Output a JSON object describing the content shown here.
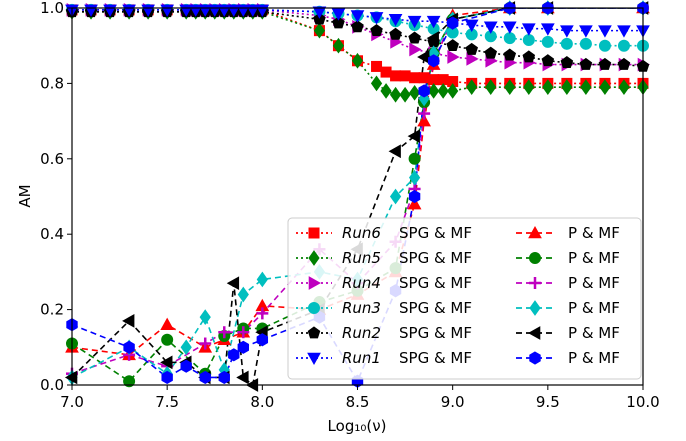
{
  "chart_data": {
    "type": "line",
    "xlabel": "Log₁₀(ν)",
    "ylabel": "AM",
    "xlim": [
      7.0,
      10.0
    ],
    "ylim": [
      0.0,
      1.0
    ],
    "x_ticks": [
      "7.0",
      "7.5",
      "8.0",
      "8.5",
      "9.0",
      "9.5",
      "10.0"
    ],
    "y_ticks": [
      "0.0",
      "0.2",
      "0.4",
      "0.6",
      "0.8",
      "1.0"
    ],
    "legend_position": "lower-right",
    "grid": false,
    "series": [
      {
        "name": "Run6",
        "method": "SPG & MF",
        "color": "#ff0000",
        "marker": "square",
        "dash": "dotted",
        "x": [
          7.0,
          7.1,
          7.2,
          7.3,
          7.4,
          7.5,
          7.6,
          7.65,
          7.7,
          7.75,
          7.8,
          7.85,
          7.9,
          7.95,
          8.0,
          8.3,
          8.4,
          8.5,
          8.6,
          8.65,
          8.7,
          8.75,
          8.8,
          8.85,
          8.9,
          8.95,
          9.0,
          9.1,
          9.2,
          9.3,
          9.4,
          9.5,
          9.6,
          9.7,
          9.8,
          9.9,
          10.0
        ],
        "y": [
          0.995,
          0.995,
          0.995,
          0.995,
          0.995,
          0.995,
          0.995,
          0.995,
          0.995,
          0.995,
          0.995,
          0.995,
          0.995,
          0.995,
          0.995,
          0.94,
          0.9,
          0.86,
          0.845,
          0.83,
          0.82,
          0.82,
          0.815,
          0.815,
          0.81,
          0.81,
          0.805,
          0.8,
          0.8,
          0.8,
          0.8,
          0.8,
          0.8,
          0.8,
          0.8,
          0.8,
          0.8
        ]
      },
      {
        "name": "Run5",
        "method": "SPG & MF",
        "color": "#008000",
        "marker": "diamond",
        "dash": "dotted",
        "x": [
          7.0,
          7.1,
          7.2,
          7.3,
          7.4,
          7.5,
          7.6,
          7.65,
          7.7,
          7.75,
          7.8,
          7.85,
          7.9,
          7.95,
          8.0,
          8.3,
          8.4,
          8.5,
          8.6,
          8.65,
          8.7,
          8.75,
          8.8,
          8.85,
          8.9,
          8.95,
          9.0,
          9.1,
          9.2,
          9.3,
          9.4,
          9.5,
          9.6,
          9.7,
          9.8,
          9.9,
          10.0
        ],
        "y": [
          0.99,
          0.99,
          0.99,
          0.99,
          0.99,
          0.99,
          0.99,
          0.99,
          0.99,
          0.99,
          0.99,
          0.99,
          0.99,
          0.99,
          0.99,
          0.94,
          0.9,
          0.86,
          0.8,
          0.78,
          0.77,
          0.77,
          0.775,
          0.775,
          0.78,
          0.78,
          0.78,
          0.79,
          0.79,
          0.79,
          0.79,
          0.79,
          0.79,
          0.79,
          0.79,
          0.79,
          0.79
        ]
      },
      {
        "name": "Run4",
        "method": "SPG & MF",
        "color": "#bf00bf",
        "marker": "triangle-right",
        "dash": "dotted",
        "x": [
          7.0,
          7.1,
          7.2,
          7.3,
          7.4,
          7.5,
          7.6,
          7.65,
          7.7,
          7.75,
          7.8,
          7.85,
          7.9,
          7.95,
          8.0,
          8.3,
          8.4,
          8.5,
          8.6,
          8.7,
          8.8,
          8.9,
          9.0,
          9.1,
          9.2,
          9.3,
          9.4,
          9.5,
          9.6,
          9.7,
          9.8,
          9.9,
          10.0
        ],
        "y": [
          0.995,
          0.995,
          0.995,
          0.995,
          0.995,
          0.995,
          0.995,
          0.995,
          0.995,
          0.995,
          0.995,
          0.995,
          0.995,
          0.995,
          0.995,
          0.98,
          0.97,
          0.95,
          0.93,
          0.91,
          0.89,
          0.88,
          0.87,
          0.865,
          0.86,
          0.855,
          0.855,
          0.85,
          0.85,
          0.85,
          0.85,
          0.85,
          0.85
        ]
      },
      {
        "name": "Run3",
        "method": "SPG & MF",
        "color": "#00bfbf",
        "marker": "circle",
        "dash": "dotted",
        "x": [
          7.0,
          7.1,
          7.2,
          7.3,
          7.4,
          7.5,
          7.6,
          7.65,
          7.7,
          7.75,
          7.8,
          7.85,
          7.9,
          7.95,
          8.0,
          8.3,
          8.4,
          8.5,
          8.6,
          8.7,
          8.8,
          8.9,
          9.0,
          9.1,
          9.2,
          9.3,
          9.4,
          9.5,
          9.6,
          9.7,
          9.8,
          9.9,
          10.0
        ],
        "y": [
          0.995,
          0.995,
          0.995,
          0.995,
          0.995,
          0.995,
          0.995,
          0.995,
          0.995,
          0.995,
          0.995,
          0.995,
          0.995,
          0.995,
          0.995,
          0.99,
          0.985,
          0.98,
          0.975,
          0.965,
          0.955,
          0.945,
          0.935,
          0.93,
          0.925,
          0.92,
          0.915,
          0.91,
          0.905,
          0.905,
          0.9,
          0.9,
          0.9
        ]
      },
      {
        "name": "Run2",
        "method": "SPG & MF",
        "color": "#000000",
        "marker": "pentagon",
        "dash": "dotted",
        "x": [
          7.0,
          7.1,
          7.2,
          7.3,
          7.4,
          7.5,
          7.6,
          7.65,
          7.7,
          7.75,
          7.8,
          7.85,
          7.9,
          7.95,
          8.0,
          8.3,
          8.4,
          8.5,
          8.6,
          8.7,
          8.8,
          8.9,
          9.0,
          9.1,
          9.2,
          9.3,
          9.4,
          9.5,
          9.6,
          9.7,
          9.8,
          9.9,
          10.0
        ],
        "y": [
          0.99,
          0.99,
          0.99,
          0.99,
          0.99,
          0.99,
          0.99,
          0.99,
          0.99,
          0.99,
          0.99,
          0.99,
          0.99,
          0.99,
          0.99,
          0.97,
          0.96,
          0.95,
          0.94,
          0.93,
          0.92,
          0.91,
          0.9,
          0.89,
          0.88,
          0.875,
          0.87,
          0.86,
          0.855,
          0.85,
          0.85,
          0.85,
          0.845
        ]
      },
      {
        "name": "Run1",
        "method": "SPG & MF",
        "color": "#0000ff",
        "marker": "triangle-down",
        "dash": "dotted",
        "x": [
          7.0,
          7.1,
          7.2,
          7.3,
          7.4,
          7.5,
          7.6,
          7.65,
          7.7,
          7.75,
          7.8,
          7.85,
          7.9,
          7.95,
          8.0,
          8.3,
          8.4,
          8.5,
          8.6,
          8.7,
          8.8,
          8.9,
          9.0,
          9.1,
          9.2,
          9.3,
          9.4,
          9.5,
          9.6,
          9.7,
          9.8,
          9.9,
          10.0
        ],
        "y": [
          0.995,
          0.995,
          0.995,
          0.995,
          0.995,
          0.995,
          0.995,
          0.995,
          0.995,
          0.995,
          0.995,
          0.995,
          0.995,
          0.995,
          0.995,
          0.99,
          0.985,
          0.98,
          0.975,
          0.97,
          0.965,
          0.965,
          0.96,
          0.955,
          0.95,
          0.95,
          0.945,
          0.945,
          0.94,
          0.94,
          0.94,
          0.94,
          0.94
        ]
      },
      {
        "name": "",
        "method": "P & MF",
        "color": "#ff0000",
        "marker": "triangle-up",
        "dash": "dashed",
        "x": [
          7.0,
          7.3,
          7.5,
          7.7,
          7.8,
          7.9,
          8.0,
          8.3,
          8.5,
          8.7,
          8.8,
          8.85,
          8.9,
          9.0,
          9.3,
          9.5,
          10.0
        ],
        "y": [
          0.1,
          0.08,
          0.16,
          0.1,
          0.12,
          0.14,
          0.21,
          0.2,
          0.24,
          0.3,
          0.48,
          0.7,
          0.85,
          0.98,
          1.0,
          1.0,
          1.0
        ]
      },
      {
        "name": "",
        "method": "P & MF",
        "color": "#008000",
        "marker": "circle",
        "dash": "dashed",
        "x": [
          7.0,
          7.3,
          7.5,
          7.7,
          7.8,
          7.9,
          8.0,
          8.3,
          8.5,
          8.7,
          8.8,
          8.85,
          8.9,
          9.0,
          9.3,
          9.5,
          10.0
        ],
        "y": [
          0.11,
          0.01,
          0.12,
          0.03,
          0.13,
          0.15,
          0.15,
          0.22,
          0.25,
          0.31,
          0.6,
          0.75,
          0.88,
          0.97,
          1.0,
          1.0,
          1.0
        ]
      },
      {
        "name": "",
        "method": "P & MF",
        "color": "#bf00bf",
        "marker": "plus",
        "dash": "dashed",
        "x": [
          7.0,
          7.3,
          7.5,
          7.7,
          7.8,
          7.9,
          8.0,
          8.3,
          8.5,
          8.7,
          8.8,
          8.85,
          8.9,
          9.0,
          9.3,
          9.5,
          10.0
        ],
        "y": [
          0.03,
          0.08,
          0.05,
          0.11,
          0.14,
          0.14,
          0.19,
          0.36,
          0.27,
          0.38,
          0.52,
          0.72,
          0.86,
          0.97,
          1.0,
          1.0,
          1.0
        ]
      },
      {
        "name": "",
        "method": "P & MF",
        "color": "#00bfbf",
        "marker": "diamond",
        "dash": "dashed",
        "x": [
          7.0,
          7.3,
          7.5,
          7.6,
          7.7,
          7.8,
          7.9,
          8.0,
          8.3,
          8.5,
          8.7,
          8.8,
          8.85,
          8.9,
          9.0,
          9.3,
          9.5,
          10.0
        ],
        "y": [
          0.02,
          0.1,
          0.03,
          0.1,
          0.18,
          0.04,
          0.24,
          0.28,
          0.3,
          0.28,
          0.5,
          0.55,
          0.76,
          0.88,
          0.97,
          1.0,
          1.0,
          1.0
        ]
      },
      {
        "name": "",
        "method": "P & MF",
        "color": "#000000",
        "marker": "triangle-left",
        "dash": "dashed",
        "x": [
          7.0,
          7.3,
          7.5,
          7.6,
          7.7,
          7.8,
          7.85,
          7.9,
          7.95,
          8.0,
          8.3,
          8.5,
          8.7,
          8.8,
          8.85,
          8.9,
          9.0,
          9.3,
          9.5,
          10.0
        ],
        "y": [
          0.02,
          0.17,
          0.06,
          0.06,
          0.02,
          0.02,
          0.27,
          0.02,
          0.0,
          0.14,
          0.2,
          0.36,
          0.62,
          0.66,
          0.87,
          0.92,
          0.97,
          1.0,
          1.0,
          1.0
        ]
      },
      {
        "name": "",
        "method": "P & MF",
        "color": "#0000ff",
        "marker": "hexagon",
        "dash": "dashed",
        "x": [
          7.0,
          7.3,
          7.5,
          7.6,
          7.7,
          7.8,
          7.85,
          7.9,
          8.0,
          8.3,
          8.5,
          8.7,
          8.8,
          8.85,
          8.9,
          9.0,
          9.3,
          9.5,
          10.0
        ],
        "y": [
          0.16,
          0.1,
          0.02,
          0.05,
          0.02,
          0.02,
          0.08,
          0.1,
          0.12,
          0.18,
          0.01,
          0.25,
          0.5,
          0.78,
          0.86,
          0.96,
          1.0,
          1.0,
          1.0
        ]
      }
    ],
    "legend": {
      "col1": [
        {
          "label": "Run6",
          "method": "SPG & MF",
          "color": "#ff0000",
          "marker": "square",
          "dash": "dotted"
        },
        {
          "label": "Run5",
          "method": "SPG & MF",
          "color": "#008000",
          "marker": "diamond",
          "dash": "dotted"
        },
        {
          "label": "Run4",
          "method": "SPG & MF",
          "color": "#bf00bf",
          "marker": "triangle-right",
          "dash": "dotted"
        },
        {
          "label": "Run3",
          "method": "SPG & MF",
          "color": "#00bfbf",
          "marker": "circle",
          "dash": "dotted"
        },
        {
          "label": "Run2",
          "method": "SPG & MF",
          "color": "#000000",
          "marker": "pentagon",
          "dash": "dotted"
        },
        {
          "label": "Run1",
          "method": "SPG & MF",
          "color": "#0000ff",
          "marker": "triangle-down",
          "dash": "dotted"
        }
      ],
      "col2": [
        {
          "label": "P & MF",
          "color": "#ff0000",
          "marker": "triangle-up",
          "dash": "dashed"
        },
        {
          "label": "P & MF",
          "color": "#008000",
          "marker": "circle",
          "dash": "dashed"
        },
        {
          "label": "P & MF",
          "color": "#bf00bf",
          "marker": "plus",
          "dash": "dashed"
        },
        {
          "label": "P & MF",
          "color": "#00bfbf",
          "marker": "diamond",
          "dash": "dashed"
        },
        {
          "label": "P & MF",
          "color": "#000000",
          "marker": "triangle-left",
          "dash": "dashed"
        },
        {
          "label": "P & MF",
          "color": "#0000ff",
          "marker": "hexagon",
          "dash": "dashed"
        }
      ]
    }
  }
}
